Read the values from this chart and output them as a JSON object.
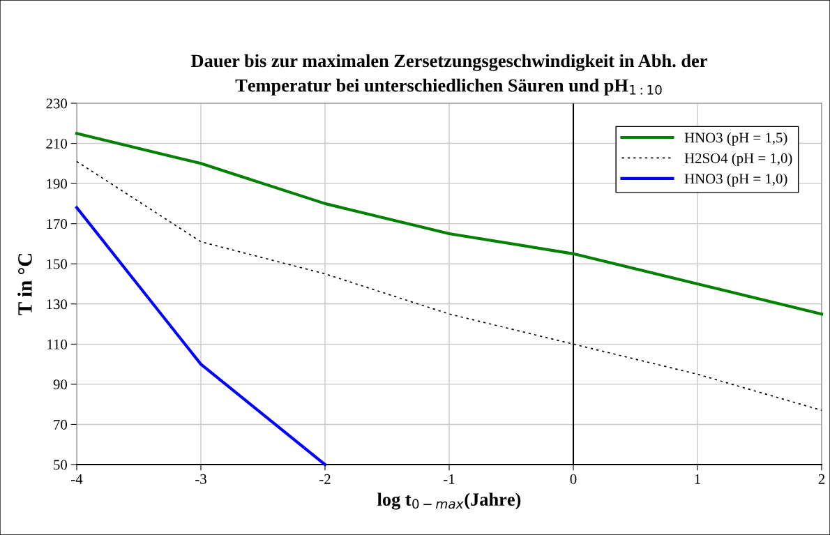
{
  "chart_data": {
    "type": "line",
    "title": "Dauer bis zur maximalen Zersetzungsgeschwindigkeit in Abh. der\nTemperatur bei unterschiedlichen Säuren und pH$_{1:10}$",
    "xlabel": "log t$_{0−max}$(Jahre)",
    "ylabel": "T in °C",
    "x": [
      -4,
      -3,
      -2,
      -1,
      0,
      1,
      2
    ],
    "series": [
      {
        "name": "HNO3 (pH = 1,5)",
        "color": "#008000",
        "values": [
          215,
          200,
          180,
          165,
          155,
          140,
          125
        ]
      },
      {
        "name": "H2SO4 (pH = 1,0)",
        "color": "#000000",
        "line_style": "dotted",
        "values": [
          201,
          161,
          145,
          125,
          110,
          95,
          77
        ]
      },
      {
        "name": "HNO3 (pH = 1,0)",
        "color": "#0000ff",
        "values": [
          178,
          100,
          50,
          null,
          null,
          null,
          null
        ]
      }
    ],
    "xlim": [
      -4,
      2
    ],
    "xticks": [
      -4,
      -3,
      -2,
      -1,
      0,
      1,
      2
    ],
    "ylim": [
      50,
      230
    ],
    "yticks": [
      50,
      70,
      90,
      110,
      130,
      150,
      170,
      190,
      210,
      230
    ],
    "ref_lines": [
      {
        "axis": "x",
        "value": 0,
        "color": "#000000"
      }
    ],
    "grid": true,
    "legend": "top right",
    "line_style": "solid",
    "marker": "none"
  }
}
